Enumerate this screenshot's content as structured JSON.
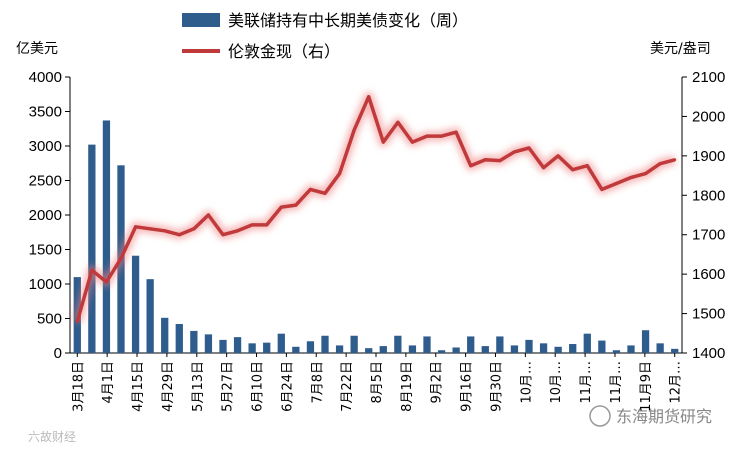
{
  "chart_data": {
    "type": "bar+line",
    "legend": [
      {
        "label": "美联储持有中长期美债变化（周）",
        "kind": "bar",
        "color": "#2e5c8c"
      },
      {
        "label": "伦敦金现（右）",
        "kind": "line",
        "color": "#c0393b"
      }
    ],
    "y_left_label": "亿美元",
    "y_right_label": "美元/盎司",
    "y_left_range": [
      0,
      4000
    ],
    "y_left_ticks": [
      "0",
      "500",
      "1000",
      "1500",
      "2000",
      "2500",
      "3000",
      "3500",
      "4000"
    ],
    "y_right_range": [
      1400,
      2100
    ],
    "y_right_ticks": [
      "1400",
      "1500",
      "1600",
      "1700",
      "1800",
      "1900",
      "2000",
      "2100"
    ],
    "x_tick_labels": [
      "3月18日",
      "4月1日",
      "4月15日",
      "4月29日",
      "5月13日",
      "5月27日",
      "6月10日",
      "6月24日",
      "7月8日",
      "7月22日",
      "8月5日",
      "8月19日",
      "9月2日",
      "9月16日",
      "9月30日",
      "10月…",
      "10月…",
      "11月…",
      "11月…",
      "11月9日",
      "12月…"
    ],
    "bar_series": {
      "name": "美联储持有中长期美债变化（周）",
      "values": [
        1100,
        3020,
        3370,
        2720,
        1410,
        1070,
        510,
        420,
        320,
        270,
        190,
        230,
        140,
        150,
        280,
        90,
        170,
        250,
        110,
        250,
        70,
        100,
        250,
        110,
        240,
        40,
        80,
        240,
        100,
        240,
        110,
        190,
        140,
        90,
        130,
        280,
        180,
        40,
        110,
        330,
        140,
        60
      ]
    },
    "line_series": {
      "name": "伦敦金现（右）",
      "values": [
        1480,
        1610,
        1580,
        1640,
        1720,
        1715,
        1710,
        1700,
        1715,
        1750,
        1700,
        1710,
        1725,
        1725,
        1770,
        1775,
        1815,
        1805,
        1855,
        1965,
        2050,
        1935,
        1985,
        1935,
        1950,
        1950,
        1960,
        1875,
        1890,
        1888,
        1910,
        1920,
        1870,
        1900,
        1865,
        1875,
        1815,
        1830,
        1845,
        1855,
        1880,
        1890
      ]
    },
    "watermarks": [
      "东海期货研究",
      "六故财经"
    ]
  }
}
